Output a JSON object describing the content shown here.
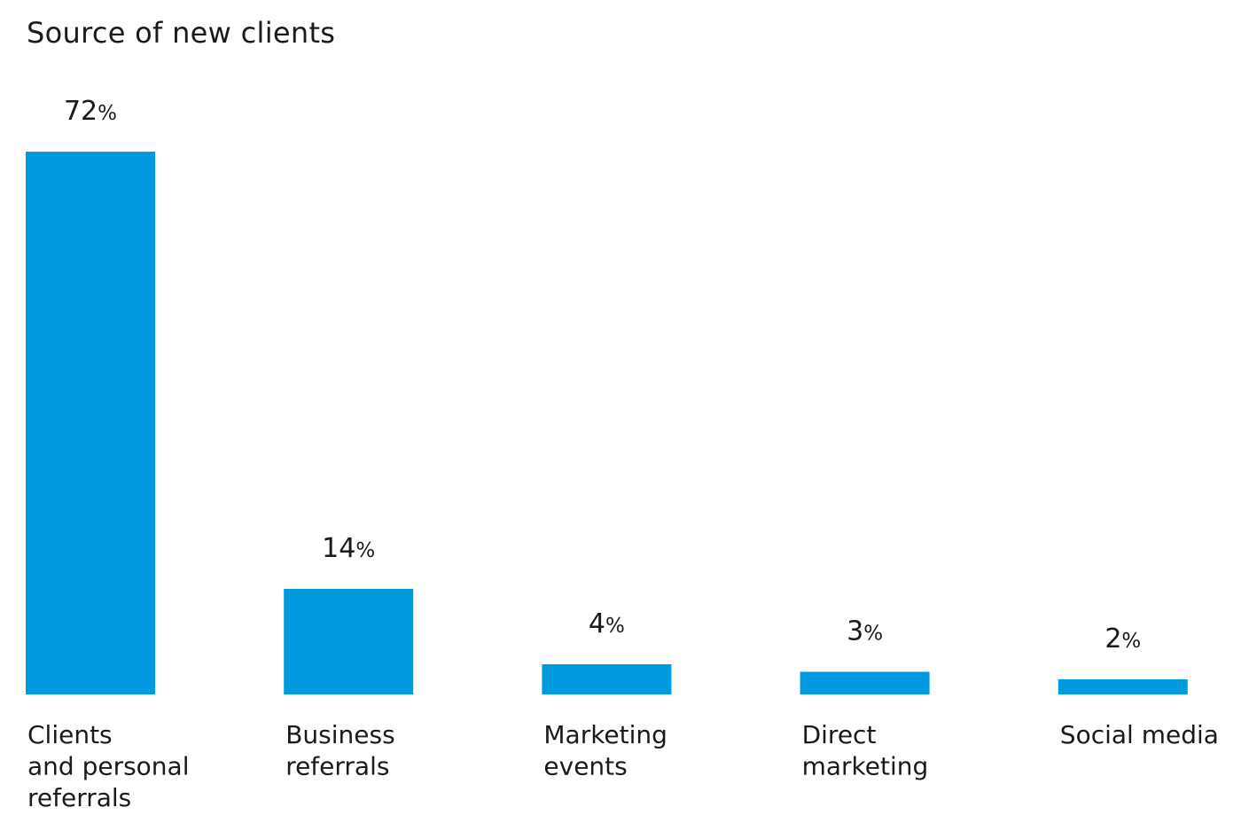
{
  "chart_data": {
    "type": "bar",
    "title": "Source of new clients",
    "categories": [
      [
        "Clients",
        "and personal",
        "referrals"
      ],
      [
        "Business",
        "referrals"
      ],
      [
        "Marketing",
        "events"
      ],
      [
        "Direct",
        "marketing"
      ],
      [
        "Social media"
      ]
    ],
    "values": [
      72,
      14,
      4,
      3,
      2
    ],
    "value_suffix": "%",
    "ylim": [
      0,
      72
    ],
    "xlabel": "",
    "ylabel": "",
    "grid": false,
    "bar_color": "#009ADE"
  }
}
